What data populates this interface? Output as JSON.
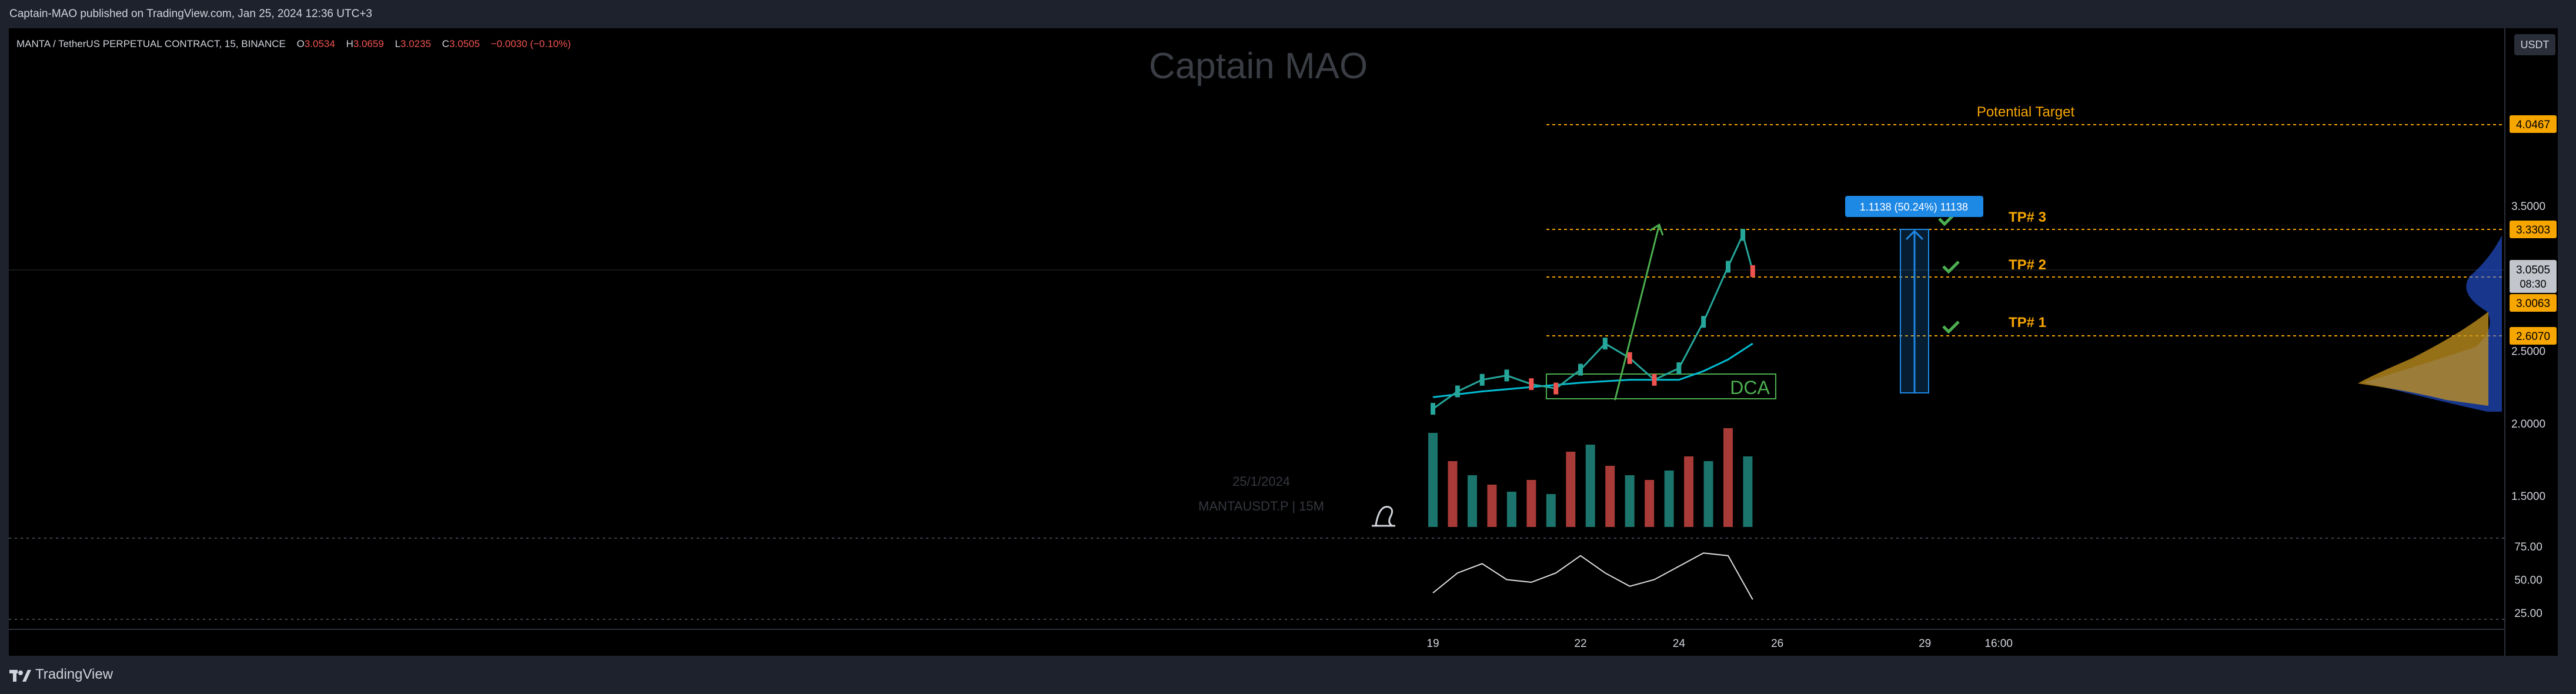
{
  "header": {
    "publish_text": "Captain-MAO published on TradingView.com, Jan 25, 2024 12:36 UTC+3"
  },
  "legend": {
    "symbol": "MANTA / TetherUS PERPETUAL CONTRACT, 15, BINANCE",
    "open_label": "O",
    "open_value": "3.0534",
    "high_label": "H",
    "high_value": "3.0659",
    "low_label": "L",
    "low_value": "3.0235",
    "close_label": "C",
    "close_value": "3.0505",
    "change": "−0.0030 (−0.10%)"
  },
  "watermark": {
    "title": "Captain MAO",
    "date": "25/1/2024",
    "ticker": "MANTAUSDT.P | 15M"
  },
  "currency_button": "USDT",
  "annotations": {
    "potential_target": "Potential Target",
    "tp3": "TP# 3",
    "tp2": "TP# 2",
    "tp1": "TP# 1",
    "dca": "DCA",
    "measure": "1.1138 (50.24%) 11138"
  },
  "price_badges": {
    "potential": "4.0467",
    "tp3": "3.3303",
    "current": "3.0505",
    "countdown": "08:30",
    "tp2": "3.0063",
    "tp1": "2.6070"
  },
  "footer": {
    "brand": "TradingView"
  },
  "colors": {
    "up": "#26a69a",
    "down": "#ef5350",
    "accent": "#f7a600",
    "line": "#00bcd4",
    "measure": "#1e88e5",
    "check": "#4caf50"
  },
  "chart_data": [
    {
      "type": "candlestick",
      "title": "MANTA / TetherUS PERPETUAL CONTRACT, 15, BINANCE",
      "x_ticks": [
        "19",
        "22",
        "24",
        "26",
        "29",
        "16:00"
      ],
      "y_ticks": [
        "3.5000",
        "2.5000",
        "2.0000",
        "1.5000"
      ],
      "price_series": {
        "name": "close",
        "x": [
          19.0,
          19.5,
          20.0,
          20.5,
          21.0,
          21.5,
          22.0,
          22.5,
          23.0,
          23.5,
          24.0,
          24.5,
          25.0,
          25.3,
          25.5
        ],
        "values": [
          2.1,
          2.22,
          2.3,
          2.33,
          2.27,
          2.24,
          2.37,
          2.55,
          2.45,
          2.3,
          2.38,
          2.7,
          3.08,
          3.3,
          3.05
        ]
      },
      "moving_average": {
        "x": [
          19.0,
          20.0,
          21.0,
          22.0,
          23.0,
          24.0,
          24.5,
          25.0,
          25.5
        ],
        "values": [
          2.18,
          2.22,
          2.25,
          2.28,
          2.3,
          2.3,
          2.36,
          2.44,
          2.55
        ]
      },
      "levels": [
        {
          "name": "Potential Target",
          "value": 4.0467
        },
        {
          "name": "TP# 3",
          "value": 3.3303
        },
        {
          "name": "TP# 2",
          "value": 3.0063
        },
        {
          "name": "TP# 1",
          "value": 2.607
        }
      ],
      "current_price": 3.0505,
      "measure": {
        "from": 2.217,
        "to": 3.3303,
        "label": "1.1138 (50.24%) 11138"
      },
      "dca_zone": {
        "x_start": 22.0,
        "x_end": 25.7,
        "from": 2.12,
        "to": 2.27
      },
      "trend_arrow": {
        "x_start": 22.7,
        "y_start": 2.16,
        "x_end": 23.6,
        "y_end": 3.37
      }
    },
    {
      "type": "bar",
      "title": "Volume",
      "x": [
        19.0,
        19.4,
        19.8,
        20.2,
        20.6,
        21.0,
        21.4,
        21.8,
        22.2,
        22.6,
        23.0,
        23.4,
        23.8,
        24.2,
        24.6,
        25.0,
        25.4
      ],
      "values": [
        40,
        28,
        22,
        18,
        15,
        20,
        14,
        32,
        35,
        26,
        22,
        20,
        24,
        30,
        28,
        42,
        30
      ]
    },
    {
      "type": "line",
      "title": "RSI",
      "y_ticks": [
        "75.00",
        "50.00",
        "25.00"
      ],
      "ylim": [
        0,
        100
      ],
      "x": [
        19.0,
        19.5,
        20.0,
        20.5,
        21.0,
        21.5,
        22.0,
        22.5,
        23.0,
        23.5,
        24.0,
        24.5,
        25.0,
        25.5
      ],
      "values": [
        40,
        55,
        62,
        50,
        48,
        55,
        68,
        55,
        45,
        50,
        60,
        70,
        68,
        35
      ]
    }
  ]
}
